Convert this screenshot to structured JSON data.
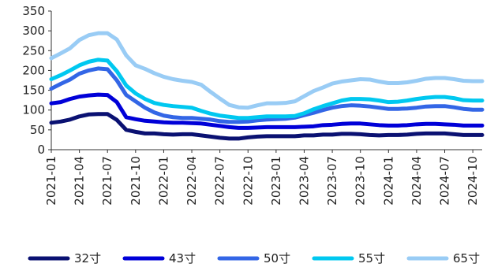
{
  "chart_data": {
    "type": "line",
    "title": "",
    "xlabel": "",
    "ylabel": "",
    "ylim": [
      0,
      350
    ],
    "yticks": [
      0,
      50,
      100,
      150,
      200,
      250,
      300,
      350
    ],
    "grid": false,
    "legend_position": "bottom",
    "x": [
      "2021-01",
      "2021-02",
      "2021-03",
      "2021-04",
      "2021-05",
      "2021-06",
      "2021-07",
      "2021-08",
      "2021-09",
      "2021-10",
      "2021-11",
      "2021-12",
      "2022-01",
      "2022-02",
      "2022-03",
      "2022-04",
      "2022-05",
      "2022-06",
      "2022-07",
      "2022-08",
      "2022-09",
      "2022-10",
      "2022-11",
      "2022-12",
      "2023-01",
      "2023-02",
      "2023-03",
      "2023-04",
      "2023-05",
      "2023-06",
      "2023-07",
      "2023-08",
      "2023-09",
      "2023-10",
      "2023-11",
      "2023-12",
      "2024-01",
      "2024-02",
      "2024-03",
      "2024-04",
      "2024-05",
      "2024-06",
      "2024-07",
      "2024-08",
      "2024-09",
      "2024-10",
      "2024-11"
    ],
    "xtick_labels": [
      "2021-01",
      "2021-04",
      "2021-07",
      "2021-10",
      "2022-01",
      "2022-04",
      "2022-07",
      "2022-10",
      "2023-01",
      "2023-04",
      "2023-07",
      "2023-10",
      "2024-01",
      "2024-04",
      "2024-07",
      "2024-10"
    ],
    "series": [
      {
        "name": "32寸",
        "color": "#0a1172",
        "values": [
          68,
          71,
          76,
          84,
          89,
          90,
          90,
          75,
          50,
          45,
          41,
          41,
          39,
          38,
          39,
          39,
          36,
          33,
          30,
          28,
          28,
          31,
          33,
          34,
          34,
          34,
          34,
          36,
          36,
          38,
          38,
          40,
          40,
          39,
          37,
          36,
          37,
          37,
          38,
          40,
          41,
          41,
          41,
          39,
          37,
          37,
          37
        ]
      },
      {
        "name": "43寸",
        "color": "#0000d8",
        "values": [
          117,
          120,
          128,
          134,
          137,
          139,
          138,
          120,
          82,
          77,
          73,
          71,
          69,
          68,
          68,
          67,
          66,
          63,
          60,
          57,
          55,
          55,
          56,
          57,
          57,
          57,
          57,
          58,
          59,
          62,
          63,
          65,
          66,
          66,
          64,
          62,
          61,
          61,
          62,
          64,
          65,
          65,
          64,
          63,
          61,
          61,
          61
        ]
      },
      {
        "name": "50寸",
        "color": "#3366e6",
        "values": [
          154,
          166,
          177,
          192,
          200,
          205,
          203,
          175,
          138,
          122,
          106,
          94,
          86,
          82,
          80,
          80,
          78,
          76,
          72,
          70,
          70,
          71,
          74,
          76,
          77,
          78,
          81,
          87,
          93,
          100,
          106,
          110,
          112,
          111,
          109,
          106,
          103,
          103,
          104,
          106,
          109,
          110,
          110,
          107,
          103,
          101,
          101
        ]
      },
      {
        "name": "55寸",
        "color": "#00c8f0",
        "values": [
          178,
          188,
          200,
          213,
          222,
          227,
          225,
          198,
          162,
          142,
          128,
          118,
          113,
          110,
          108,
          106,
          98,
          91,
          86,
          83,
          80,
          80,
          82,
          84,
          84,
          84,
          85,
          92,
          102,
          110,
          117,
          124,
          128,
          128,
          127,
          124,
          120,
          121,
          124,
          128,
          131,
          133,
          133,
          130,
          125,
          124,
          124
        ]
      },
      {
        "name": "65寸",
        "color": "#99ccf5",
        "values": [
          231,
          243,
          256,
          277,
          289,
          294,
          294,
          278,
          238,
          213,
          204,
          193,
          184,
          178,
          174,
          171,
          164,
          146,
          129,
          113,
          107,
          106,
          112,
          117,
          117,
          118,
          122,
          135,
          148,
          157,
          167,
          172,
          175,
          178,
          177,
          172,
          168,
          168,
          170,
          174,
          179,
          181,
          181,
          178,
          174,
          173,
          173
        ]
      }
    ]
  }
}
